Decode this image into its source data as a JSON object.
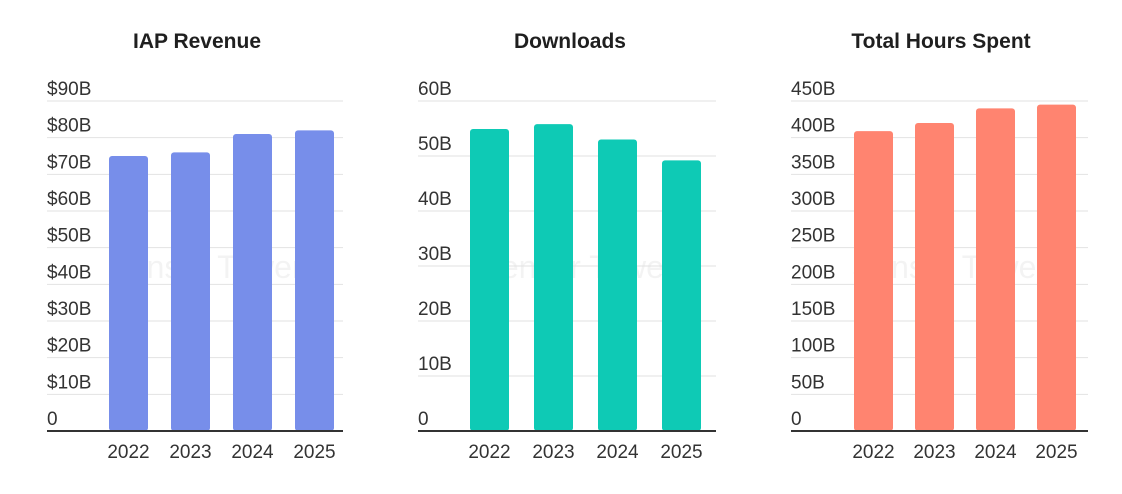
{
  "watermark": "Sensor Tower",
  "chart_data": [
    {
      "type": "bar",
      "title": "IAP Revenue",
      "categories": [
        "2022",
        "2023",
        "2024",
        "2025"
      ],
      "values": [
        75,
        76,
        81,
        82
      ],
      "ylim": [
        0,
        90
      ],
      "yticks": [
        0,
        10,
        20,
        30,
        40,
        50,
        60,
        70,
        80,
        90
      ],
      "ytick_labels": [
        "0",
        "$10B",
        "$20B",
        "$30B",
        "$40B",
        "$50B",
        "$60B",
        "$70B",
        "$80B",
        "$90B"
      ],
      "color": "#778EEA",
      "grid": true,
      "legend": "none"
    },
    {
      "type": "bar",
      "title": "Downloads",
      "categories": [
        "2022",
        "2023",
        "2024",
        "2025"
      ],
      "values": [
        54.9,
        55.8,
        53.0,
        49.2
      ],
      "ylim": [
        0,
        60
      ],
      "yticks": [
        0,
        10,
        20,
        30,
        40,
        50,
        60
      ],
      "ytick_labels": [
        "0",
        "10B",
        "20B",
        "30B",
        "40B",
        "50B",
        "60B"
      ],
      "color": "#0ECAB5",
      "grid": true,
      "legend": "none"
    },
    {
      "type": "bar",
      "title": "Total Hours Spent",
      "categories": [
        "2022",
        "2023",
        "2024",
        "2025"
      ],
      "values": [
        409,
        420,
        440,
        445
      ],
      "ylim": [
        0,
        450
      ],
      "yticks": [
        0,
        50,
        100,
        150,
        200,
        250,
        300,
        350,
        400,
        450
      ],
      "ytick_labels": [
        "0",
        "50B",
        "100B",
        "150B",
        "200B",
        "250B",
        "300B",
        "350B",
        "400B",
        "450B"
      ],
      "color": "#FF8470",
      "grid": true,
      "legend": "none"
    }
  ]
}
